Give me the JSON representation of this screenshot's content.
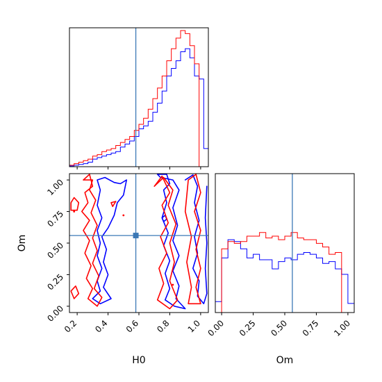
{
  "chart_data": {
    "type": "corner",
    "parameters": [
      "H0",
      "Om"
    ],
    "truths": {
      "H0": 0.58,
      "Om": 0.56
    },
    "colors": {
      "series_a": "#0000ff",
      "series_b": "#ff0000",
      "truth": "#3b78b5"
    },
    "x_axis_labels": {
      "H0": "H0",
      "Om": "Om"
    },
    "y_axis_labels": {
      "Om": "Om"
    },
    "H0_ticks": [
      {
        "value": 0.2,
        "label": "0.2"
      },
      {
        "value": 0.4,
        "label": "0.4"
      },
      {
        "value": 0.6,
        "label": "0.6"
      },
      {
        "value": 0.8,
        "label": "0.8"
      },
      {
        "value": 1.0,
        "label": "1.0"
      }
    ],
    "Om_ticks": [
      {
        "value": 0.0,
        "label": "0.00"
      },
      {
        "value": 0.25,
        "label": "0.25"
      },
      {
        "value": 0.5,
        "label": "0.50"
      },
      {
        "value": 0.75,
        "label": "0.75"
      },
      {
        "value": 1.0,
        "label": "1.00"
      }
    ],
    "H0_range": [
      0.15,
      1.05
    ],
    "Om_range": [
      -0.05,
      1.05
    ],
    "hist_H0": {
      "bin_edges": [
        0.15,
        0.18,
        0.21,
        0.24,
        0.27,
        0.3,
        0.33,
        0.36,
        0.39,
        0.42,
        0.45,
        0.48,
        0.51,
        0.54,
        0.57,
        0.6,
        0.63,
        0.66,
        0.69,
        0.72,
        0.75,
        0.78,
        0.81,
        0.84,
        0.87,
        0.9,
        0.93,
        0.96,
        0.99,
        1.02,
        1.05
      ],
      "series": [
        {
          "name": "",
          "color": "#0000ff",
          "counts": [
            0.5,
            1,
            1.5,
            2,
            3,
            5,
            6,
            7,
            8,
            9,
            10,
            13,
            15,
            17,
            20,
            25,
            27,
            30,
            36,
            42,
            50,
            60,
            65,
            70,
            76,
            78,
            72,
            60,
            58,
            12
          ]
        },
        {
          "name": "",
          "color": "#ff0000",
          "counts": [
            1,
            2,
            3,
            4,
            5,
            7,
            8,
            10,
            11,
            12,
            14,
            16,
            18,
            20,
            24,
            28,
            32,
            38,
            45,
            52,
            60,
            70,
            78,
            85,
            90,
            88,
            80,
            68,
            0,
            0
          ]
        }
      ]
    },
    "hist_Om": {
      "bin_edges": [
        -0.05,
        0.0,
        0.05,
        0.1,
        0.15,
        0.2,
        0.25,
        0.3,
        0.35,
        0.4,
        0.45,
        0.5,
        0.55,
        0.6,
        0.65,
        0.7,
        0.75,
        0.8,
        0.85,
        0.9,
        0.95,
        1.0,
        1.05
      ],
      "series": [
        {
          "name": "",
          "color": "#0000ff",
          "counts": [
            12,
            60,
            80,
            78,
            70,
            60,
            64,
            58,
            58,
            48,
            56,
            60,
            58,
            64,
            66,
            64,
            60,
            54,
            56,
            48,
            42,
            10
          ]
        },
        {
          "name": "",
          "color": "#ff0000",
          "counts": [
            0,
            70,
            78,
            76,
            78,
            84,
            84,
            88,
            82,
            84,
            80,
            84,
            88,
            82,
            80,
            80,
            76,
            72,
            64,
            66,
            0,
            0
          ]
        }
      ]
    },
    "contours_H0_Om": [
      {
        "color": "#0000ff",
        "points": [
          [
            0.33,
            1.0
          ],
          [
            0.38,
            1.02
          ],
          [
            0.44,
            0.98
          ],
          [
            0.48,
            0.97
          ],
          [
            0.52,
            1.0
          ],
          [
            0.5,
            0.88
          ],
          [
            0.46,
            0.82
          ],
          [
            0.44,
            0.72
          ],
          [
            0.4,
            0.62
          ],
          [
            0.36,
            0.55
          ],
          [
            0.39,
            0.45
          ],
          [
            0.37,
            0.35
          ],
          [
            0.4,
            0.25
          ],
          [
            0.37,
            0.15
          ],
          [
            0.42,
            0.06
          ],
          [
            0.35,
            0.02
          ],
          [
            0.3,
            0.06
          ],
          [
            0.35,
            0.12
          ],
          [
            0.33,
            0.2
          ],
          [
            0.36,
            0.3
          ],
          [
            0.33,
            0.4
          ],
          [
            0.35,
            0.5
          ],
          [
            0.33,
            0.6
          ],
          [
            0.36,
            0.7
          ],
          [
            0.33,
            0.8
          ],
          [
            0.35,
            0.92
          ],
          [
            0.33,
            1.0
          ]
        ]
      },
      {
        "color": "#0000ff",
        "points": [
          [
            0.72,
            1.05
          ],
          [
            0.78,
            1.05
          ],
          [
            0.8,
            0.97
          ],
          [
            0.76,
            0.92
          ],
          [
            0.78,
            0.82
          ],
          [
            0.75,
            0.7
          ],
          [
            0.79,
            0.58
          ],
          [
            0.76,
            0.48
          ],
          [
            0.8,
            0.36
          ],
          [
            0.77,
            0.26
          ],
          [
            0.8,
            0.14
          ],
          [
            0.77,
            0.05
          ],
          [
            0.83,
            0.0
          ],
          [
            0.9,
            -0.02
          ],
          [
            0.84,
            0.06
          ],
          [
            0.86,
            0.16
          ],
          [
            0.82,
            0.28
          ],
          [
            0.86,
            0.4
          ],
          [
            0.82,
            0.52
          ],
          [
            0.85,
            0.64
          ],
          [
            0.82,
            0.78
          ],
          [
            0.86,
            0.92
          ],
          [
            0.82,
            1.0
          ],
          [
            0.74,
            1.02
          ],
          [
            0.72,
            1.05
          ]
        ]
      },
      {
        "color": "#0000ff",
        "points": [
          [
            0.9,
            1.0
          ],
          [
            0.95,
            1.04
          ],
          [
            0.98,
            0.95
          ],
          [
            0.96,
            0.82
          ],
          [
            0.99,
            0.68
          ],
          [
            0.96,
            0.55
          ],
          [
            0.98,
            0.42
          ],
          [
            0.95,
            0.3
          ],
          [
            0.99,
            0.2
          ],
          [
            0.98,
            0.08
          ],
          [
            1.02,
            0.02
          ],
          [
            1.04,
            0.1
          ],
          [
            1.03,
            0.3
          ],
          [
            1.04,
            0.5
          ],
          [
            1.03,
            0.7
          ],
          [
            1.04,
            0.95
          ]
        ]
      },
      {
        "color": "#0000ff",
        "points": [
          [
            0.75,
            0.7
          ],
          [
            0.77,
            0.72
          ],
          [
            0.78,
            0.69
          ],
          [
            0.76,
            0.67
          ],
          [
            0.75,
            0.7
          ]
        ]
      },
      {
        "color": "#ff0000",
        "points": [
          [
            0.24,
            1.0
          ],
          [
            0.28,
            1.05
          ],
          [
            0.3,
            0.95
          ],
          [
            0.25,
            0.9
          ],
          [
            0.27,
            0.82
          ],
          [
            0.23,
            0.75
          ],
          [
            0.28,
            0.68
          ],
          [
            0.24,
            0.6
          ],
          [
            0.28,
            0.52
          ],
          [
            0.25,
            0.42
          ],
          [
            0.29,
            0.32
          ],
          [
            0.26,
            0.22
          ],
          [
            0.3,
            0.14
          ],
          [
            0.27,
            0.06
          ],
          [
            0.33,
            0.0
          ],
          [
            0.36,
            0.07
          ],
          [
            0.31,
            0.14
          ],
          [
            0.34,
            0.24
          ],
          [
            0.3,
            0.34
          ],
          [
            0.33,
            0.44
          ],
          [
            0.3,
            0.54
          ],
          [
            0.33,
            0.64
          ],
          [
            0.29,
            0.74
          ],
          [
            0.32,
            0.84
          ],
          [
            0.28,
            0.92
          ],
          [
            0.3,
            1.0
          ],
          [
            0.24,
            1.0
          ]
        ]
      },
      {
        "color": "#ff0000",
        "points": [
          [
            0.16,
            0.82
          ],
          [
            0.18,
            0.86
          ],
          [
            0.21,
            0.82
          ],
          [
            0.2,
            0.76
          ],
          [
            0.16,
            0.76
          ],
          [
            0.16,
            0.82
          ]
        ]
      },
      {
        "color": "#ff0000",
        "points": [
          [
            0.16,
            0.12
          ],
          [
            0.19,
            0.16
          ],
          [
            0.21,
            0.1
          ],
          [
            0.18,
            0.06
          ],
          [
            0.16,
            0.12
          ]
        ]
      },
      {
        "color": "#ff0000",
        "points": [
          [
            0.7,
            0.95
          ],
          [
            0.75,
            1.03
          ],
          [
            0.8,
            0.9
          ],
          [
            0.75,
            0.8
          ],
          [
            0.79,
            0.66
          ],
          [
            0.74,
            0.55
          ],
          [
            0.78,
            0.42
          ],
          [
            0.73,
            0.3
          ],
          [
            0.76,
            0.18
          ],
          [
            0.72,
            0.05
          ],
          [
            0.8,
            -0.02
          ],
          [
            0.85,
            0.05
          ],
          [
            0.8,
            0.2
          ],
          [
            0.83,
            0.35
          ],
          [
            0.8,
            0.5
          ],
          [
            0.84,
            0.65
          ],
          [
            0.79,
            0.8
          ],
          [
            0.82,
            0.92
          ],
          [
            0.76,
            1.02
          ],
          [
            0.7,
            0.95
          ]
        ]
      },
      {
        "color": "#ff0000",
        "points": [
          [
            0.92,
            1.0
          ],
          [
            0.97,
            1.05
          ],
          [
            1.0,
            0.9
          ],
          [
            0.96,
            0.75
          ],
          [
            1.0,
            0.6
          ],
          [
            0.97,
            0.45
          ],
          [
            1.0,
            0.3
          ],
          [
            0.97,
            0.15
          ],
          [
            1.0,
            0.02
          ],
          [
            0.92,
            0.02
          ],
          [
            0.94,
            0.15
          ],
          [
            0.91,
            0.35
          ],
          [
            0.94,
            0.55
          ],
          [
            0.9,
            0.75
          ],
          [
            0.92,
            1.0
          ]
        ]
      },
      {
        "color": "#ff0000",
        "points": [
          [
            0.42,
            0.82
          ],
          [
            0.45,
            0.83
          ],
          [
            0.43,
            0.79
          ],
          [
            0.42,
            0.82
          ]
        ]
      }
    ],
    "contour_dots": [
      {
        "color": "#ff0000",
        "x": 0.5,
        "y": 0.72
      },
      {
        "color": "#ff0000",
        "x": 0.18,
        "y": 0.75
      },
      {
        "color": "#ff0000",
        "x": 0.82,
        "y": 0.17
      }
    ]
  }
}
